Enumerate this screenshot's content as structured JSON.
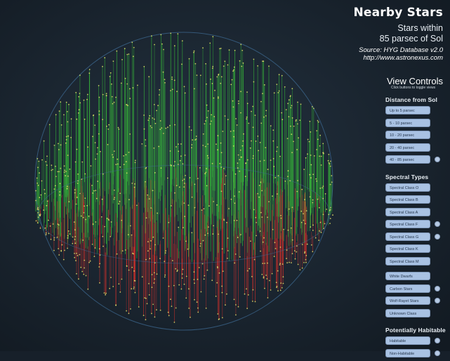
{
  "header": {
    "title": "Nearby Stars",
    "subtitle_line1": "Stars within",
    "subtitle_line2": "85 parsec of Sol",
    "source": "Source: HYG Database v2.0",
    "url": "http://www.astronexus.com"
  },
  "view_controls": {
    "title": "View Controls",
    "hint": "Click buttons to toggle views"
  },
  "sections": {
    "distance": {
      "heading": "Distance from Sol",
      "buttons": [
        {
          "label": "Up to 5 parsec",
          "toggle": false
        },
        {
          "label": "5 - 10 parsec",
          "toggle": false
        },
        {
          "label": "10 - 20 parsec",
          "toggle": false
        },
        {
          "label": "20 - 40 parsec",
          "toggle": false
        },
        {
          "label": "40 - 85 parsec",
          "toggle": true
        }
      ]
    },
    "spectral": {
      "heading": "Spectral Types",
      "buttons": [
        {
          "label": "Spectral Class O",
          "toggle": false
        },
        {
          "label": "Spectral Class B",
          "toggle": false
        },
        {
          "label": "Spectral Class A",
          "toggle": false
        },
        {
          "label": "Spectral Class F",
          "toggle": true
        },
        {
          "label": "Spectral Class G",
          "toggle": true
        },
        {
          "label": "Spectral Class K",
          "toggle": false
        },
        {
          "label": "Spectral Class M",
          "toggle": false
        }
      ]
    },
    "other": {
      "buttons": [
        {
          "label": "White Dwarfs",
          "toggle": false
        },
        {
          "label": "Carbon Stars",
          "toggle": true
        },
        {
          "label": "Wolf-Rayet Stars",
          "toggle": true
        },
        {
          "label": "Unknown Class",
          "toggle": false
        }
      ]
    },
    "habitable": {
      "heading": "Potentially Habitable",
      "buttons": [
        {
          "label": "Habitable",
          "toggle": true
        },
        {
          "label": "Non-Habitable",
          "toggle": true
        }
      ]
    }
  },
  "colors": {
    "background": "#17202a",
    "above_plane": "#39c43a",
    "below_plane": "#d8302a",
    "star_point": "#e4e36a",
    "boundary": "#3f6c95"
  }
}
